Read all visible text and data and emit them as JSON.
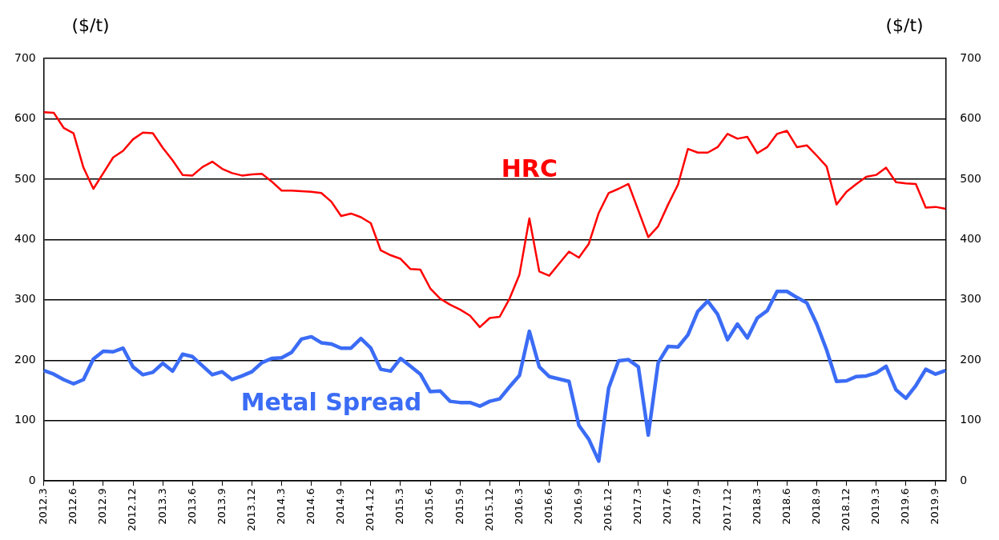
{
  "chart_data": {
    "type": "line",
    "ylabel": "($/t)",
    "y2label": "($/t)",
    "categories": [
      "2012.3",
      null,
      null,
      "2012.6",
      null,
      null,
      "2012.9",
      null,
      null,
      "2012.12",
      null,
      null,
      "2013.3",
      null,
      null,
      "2013.6",
      null,
      null,
      "2013.9",
      null,
      null,
      "2013.12",
      null,
      null,
      "2014.3",
      null,
      null,
      "2014.6",
      null,
      null,
      "2014.9",
      null,
      null,
      "2014.12",
      null,
      null,
      "2015.3",
      null,
      null,
      "2015.6",
      null,
      null,
      "2015.9",
      null,
      null,
      "2015.12",
      null,
      null,
      "2016.3",
      null,
      null,
      "2016.6",
      null,
      null,
      "2016.9",
      null,
      null,
      "2016.12",
      null,
      null,
      "2017.3",
      null,
      null,
      "2017.6",
      null,
      null,
      "2017.9",
      null,
      null,
      "2017.12",
      null,
      null,
      "2018.3",
      null,
      null,
      "2018.6",
      null,
      null,
      "2018.9",
      null,
      null,
      "2018.12",
      null,
      null,
      "2019.3",
      null,
      null,
      "2019.6",
      null,
      null,
      "2019.9",
      null
    ],
    "series": [
      {
        "name": "HRC",
        "color": "#ff0000",
        "values": [
          611,
          610,
          585,
          576,
          519,
          484,
          510,
          536,
          547,
          566,
          577,
          576,
          552,
          531,
          507,
          506,
          520,
          529,
          517,
          510,
          506,
          508,
          509,
          496,
          481,
          481,
          480,
          479,
          477,
          463,
          439,
          443,
          437,
          427,
          382,
          374,
          368,
          351,
          350,
          319,
          302,
          292,
          284,
          274,
          255,
          270,
          272,
          302,
          342,
          435,
          347,
          340,
          360,
          380,
          370,
          393,
          444,
          477,
          484,
          492,
          448,
          404,
          422,
          458,
          491,
          550,
          544,
          544,
          553,
          575,
          567,
          570,
          543,
          553,
          575,
          580,
          553,
          556,
          539,
          521,
          458,
          479,
          492,
          504,
          507,
          519,
          495,
          493,
          492,
          453,
          454,
          451
        ]
      },
      {
        "name": "Metal Spread",
        "color": "#3b6cf5",
        "values": [
          183,
          177,
          168,
          161,
          168,
          202,
          215,
          214,
          220,
          189,
          176,
          180,
          195,
          182,
          210,
          206,
          191,
          176,
          181,
          168,
          174,
          181,
          196,
          203,
          204,
          213,
          235,
          239,
          229,
          227,
          220,
          220,
          236,
          220,
          185,
          182,
          203,
          190,
          177,
          148,
          149,
          132,
          130,
          130,
          124,
          132,
          136,
          156,
          175,
          248,
          189,
          173,
          169,
          165,
          92,
          69,
          33,
          154,
          199,
          201,
          189,
          76,
          196,
          223,
          222,
          242,
          281,
          298,
          276,
          234,
          260,
          237,
          270,
          282,
          314,
          314,
          304,
          295,
          260,
          217,
          165,
          166,
          173,
          174,
          179,
          190,
          151,
          137,
          158,
          185,
          177,
          183
        ]
      }
    ],
    "ylim": [
      0,
      700
    ],
    "yticks": [
      0,
      100,
      200,
      300,
      400,
      500,
      600,
      700
    ],
    "y2lim": [
      0,
      700
    ],
    "y2ticks": [
      0,
      100,
      200,
      300,
      400,
      500,
      600,
      700
    ],
    "grid": "y",
    "legend": false,
    "marker": "none",
    "line_style": "solid"
  }
}
